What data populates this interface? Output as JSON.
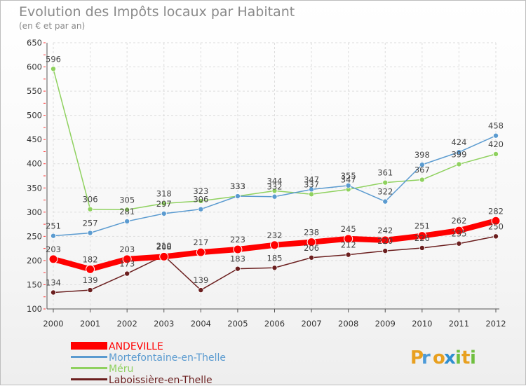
{
  "chart_data": {
    "type": "line",
    "title": "Evolution des Impôts locaux par Habitant",
    "subtitle": "(en € et par an)",
    "x": [
      "2000",
      "2001",
      "2002",
      "2003",
      "2004",
      "2005",
      "2006",
      "2007",
      "2008",
      "2009",
      "2010",
      "2011",
      "2012"
    ],
    "ylim": [
      100,
      650
    ],
    "yticks": [
      100,
      150,
      200,
      250,
      300,
      350,
      400,
      450,
      500,
      550,
      600,
      650
    ],
    "grid": true,
    "legend_position": "bottom-left",
    "series": [
      {
        "name": "Laboissière-en-Thelle",
        "color": "#6b1f1f",
        "values": [
          134,
          139,
          173,
          210,
          139,
          183,
          185,
          206,
          212,
          220,
          226,
          235,
          250
        ]
      },
      {
        "name": "Méru",
        "color": "#8fd15f",
        "values": [
          596,
          306,
          305,
          318,
          323,
          333,
          344,
          337,
          347,
          361,
          367,
          399,
          420
        ]
      },
      {
        "name": "Mortefontaine-en-Thelle",
        "color": "#5b9bd0",
        "values": [
          251,
          257,
          281,
          297,
          306,
          333,
          332,
          347,
          355,
          322,
          398,
          424,
          458
        ]
      },
      {
        "name": "ANDEVILLE",
        "color": "#ff0000",
        "values": [
          203,
          182,
          203,
          208,
          217,
          223,
          232,
          238,
          245,
          242,
          251,
          262,
          282
        ]
      }
    ],
    "legend_order": [
      "ANDEVILLE",
      "Mortefontaine-en-Thelle",
      "Méru",
      "Laboissière-en-Thelle"
    ]
  },
  "brand": {
    "letters": [
      "P",
      "r",
      "o",
      "x",
      "i",
      "t",
      "i"
    ],
    "colors": [
      "#e8a020",
      "#4c9ad8",
      "#e8a020",
      "#2f8fd0",
      "#6fbf3f",
      "#e8a020",
      "#6fbf3f"
    ]
  }
}
